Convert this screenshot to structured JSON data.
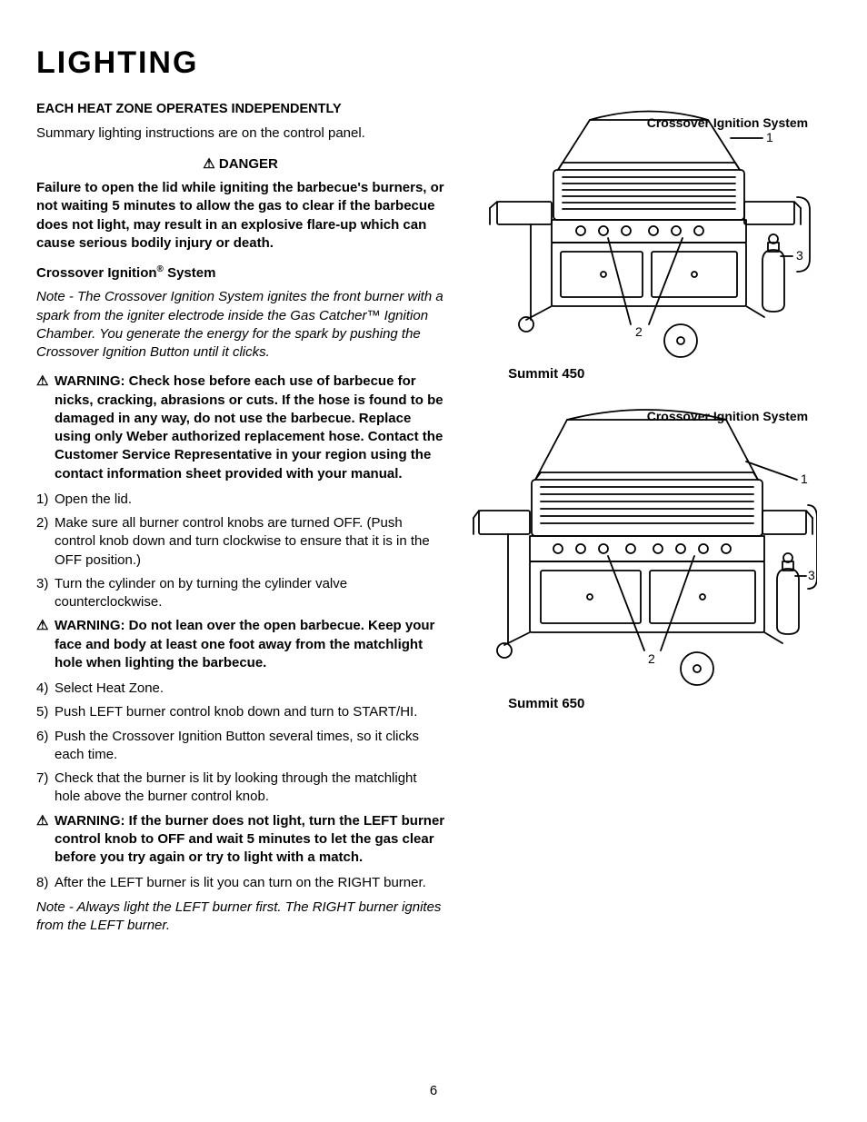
{
  "title": "LIGHTING",
  "page_num": "6",
  "left": {
    "subhead": "EACH HEAT ZONE OPERATES INDEPENDENTLY",
    "intro": "Summary lighting instructions are on the control panel.",
    "danger_icon": "⚠",
    "danger_label": "DANGER",
    "danger_body": "Failure to open the lid while igniting the barbecue's burners, or not waiting 5 minutes to allow the gas to clear if the barbecue does not light, may result in an explosive flare-up which can cause serious bodily injury or death.",
    "system_head_a": "Crossover Ignition",
    "system_head_reg": "®",
    "system_head_b": " System",
    "note1": "Note - The Crossover Ignition System ignites the front burner with a spark from the igniter electrode inside the Gas Catcher™ Ignition Chamber. You generate the energy for the spark by pushing the Crossover Ignition Button until it clicks.",
    "warn_icon": "⚠",
    "warn1": "WARNING: Check hose before each use of barbecue for nicks, cracking, abrasions or cuts. If the hose is found to be damaged in any way, do not use the barbecue. Replace using only Weber authorized replacement hose. Contact the Customer Service Representative in your region using the contact information sheet provided with your manual.",
    "steps1": [
      {
        "n": "1)",
        "t": "Open the lid."
      },
      {
        "n": "2)",
        "t": "Make sure all burner control knobs are turned OFF. (Push control knob down and turn clockwise to ensure that it is in the OFF position.)"
      },
      {
        "n": "3)",
        "t": "Turn the cylinder on by turning the cylinder valve counterclockwise."
      }
    ],
    "warn2": "WARNING: Do not lean over the open barbecue. Keep your face and body at least one foot away from the matchlight hole when lighting the barbecue.",
    "steps2": [
      {
        "n": "4)",
        "t": "Select Heat Zone."
      },
      {
        "n": "5)",
        "t": "Push LEFT burner control knob down and turn to START/HI."
      },
      {
        "n": "6)",
        "t": "Push the Crossover Ignition Button several times, so it clicks each time."
      },
      {
        "n": "7)",
        "t": "Check that the burner is lit by looking through the matchlight hole above the burner control knob."
      }
    ],
    "warn3": "WARNING: If the burner does not light, turn the LEFT burner control knob to OFF and wait 5 minutes to let the gas clear before you try again or try to light with a match.",
    "steps3": [
      {
        "n": "8)",
        "t": "After the LEFT burner is lit you can turn on the RIGHT burner."
      }
    ],
    "note2": "Note - Always light the LEFT burner first. The RIGHT burner ignites from the LEFT burner."
  },
  "right": {
    "fig1": {
      "top_label": "Crossover Ignition System",
      "bottom_label": "Summit 450",
      "c1": "1",
      "c2": "2",
      "c3": "3"
    },
    "fig2": {
      "top_label": "Crossover Ignition System",
      "bottom_label": "Summit 650",
      "c1": "1",
      "c2": "2",
      "c3": "3"
    }
  },
  "style": {
    "text_color": "#000000",
    "bg_color": "#ffffff",
    "title_fontsize": 34,
    "body_fontsize": 15
  }
}
